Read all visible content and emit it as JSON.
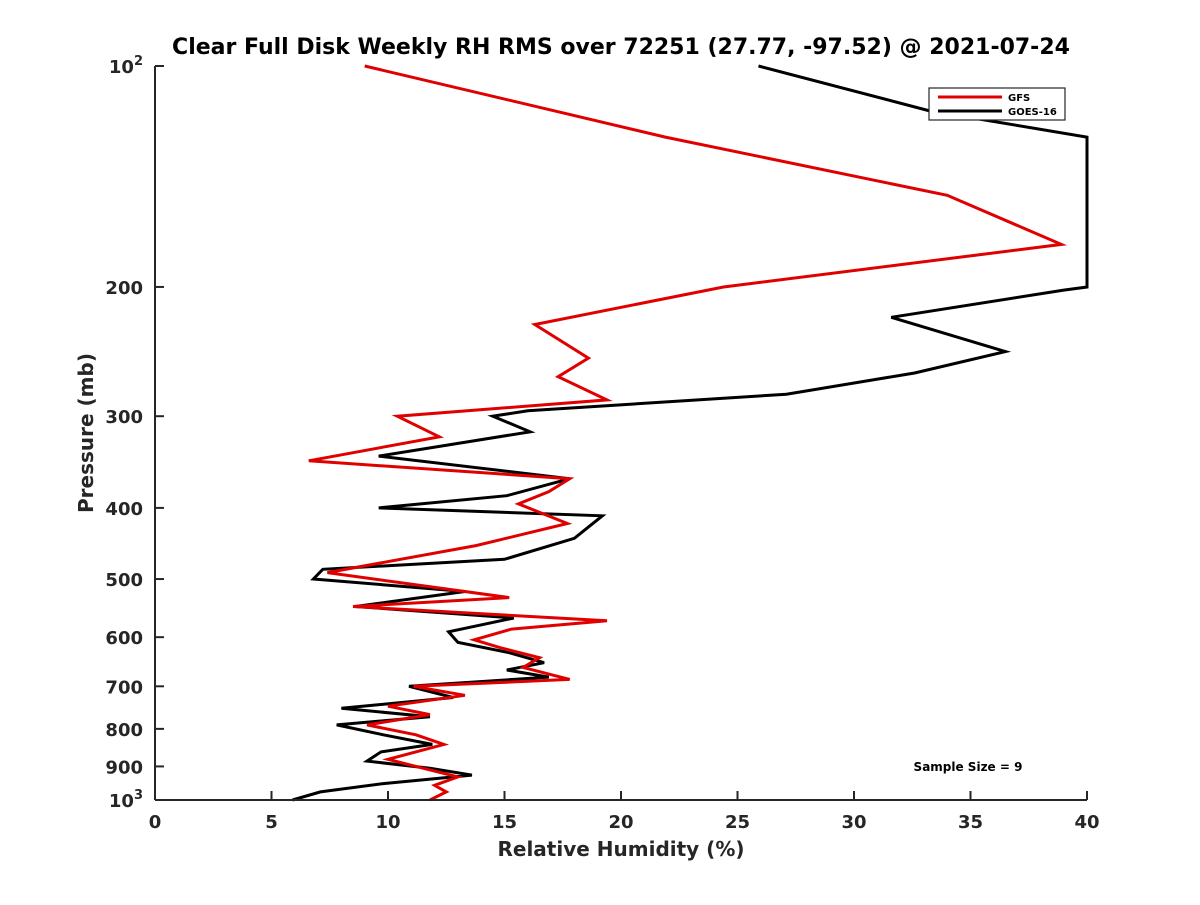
{
  "chart_data": {
    "type": "line",
    "title": "Clear Full Disk Weekly RH RMS over 72251 (27.77, -97.52) @ 2021-07-24",
    "xlabel": "Relative Humidity (%)",
    "ylabel": "Pressure (mb)",
    "xlim": [
      0,
      40
    ],
    "ylim": [
      100,
      1000
    ],
    "y_scale": "log",
    "y_reversed": true,
    "grid": false,
    "legend_position": "top-right",
    "x_ticks": [
      "0",
      "5",
      "10",
      "15",
      "20",
      "25",
      "30",
      "35",
      "40"
    ],
    "y_ticks": [
      {
        "value": 100,
        "base": "10",
        "exp": "2"
      },
      {
        "value": 200,
        "label": "200"
      },
      {
        "value": 300,
        "label": "300"
      },
      {
        "value": 400,
        "label": "400"
      },
      {
        "value": 500,
        "label": "500"
      },
      {
        "value": 600,
        "label": "600"
      },
      {
        "value": 700,
        "label": "700"
      },
      {
        "value": 800,
        "label": "800"
      },
      {
        "value": 900,
        "label": "900"
      },
      {
        "value": 1000,
        "base": "10",
        "exp": "3"
      }
    ],
    "annotation": "Sample Size = 9",
    "series": [
      {
        "name": "GFS",
        "color": "#e00000",
        "points": [
          [
            9.0,
            100
          ],
          [
            21.9,
            125
          ],
          [
            34.0,
            150
          ],
          [
            38.9,
            175
          ],
          [
            24.4,
            200
          ],
          [
            16.3,
            225
          ],
          [
            18.6,
            250
          ],
          [
            17.3,
            265
          ],
          [
            19.4,
            285
          ],
          [
            10.4,
            300
          ],
          [
            12.2,
            320
          ],
          [
            6.6,
            345
          ],
          [
            17.8,
            365
          ],
          [
            16.9,
            380
          ],
          [
            15.6,
            395
          ],
          [
            17.7,
            420
          ],
          [
            13.8,
            450
          ],
          [
            7.4,
            490
          ],
          [
            15.2,
            530
          ],
          [
            8.5,
            545
          ],
          [
            19.4,
            570
          ],
          [
            15.3,
            585
          ],
          [
            13.7,
            605
          ],
          [
            14.8,
            620
          ],
          [
            16.5,
            640
          ],
          [
            15.8,
            660
          ],
          [
            17.8,
            685
          ],
          [
            11.1,
            700
          ],
          [
            13.3,
            720
          ],
          [
            10.0,
            745
          ],
          [
            11.8,
            765
          ],
          [
            9.1,
            790
          ],
          [
            11.2,
            815
          ],
          [
            12.4,
            840
          ],
          [
            10.0,
            880
          ],
          [
            11.5,
            905
          ],
          [
            13.0,
            930
          ],
          [
            12.0,
            955
          ],
          [
            12.5,
            975
          ],
          [
            11.8,
            1000
          ]
        ]
      },
      {
        "name": "GOES-16",
        "color": "#000000",
        "points": [
          [
            25.9,
            100
          ],
          [
            33.2,
            115
          ],
          [
            40.0,
            125
          ],
          [
            40.0,
            200
          ],
          [
            39.0,
            202
          ],
          [
            31.6,
            220
          ],
          [
            36.5,
            245
          ],
          [
            32.6,
            262
          ],
          [
            27.1,
            280
          ],
          [
            16.0,
            295
          ],
          [
            14.5,
            300
          ],
          [
            16.1,
            315
          ],
          [
            9.6,
            340
          ],
          [
            17.8,
            365
          ],
          [
            15.1,
            385
          ],
          [
            9.6,
            400
          ],
          [
            19.2,
            410
          ],
          [
            18.0,
            440
          ],
          [
            15.0,
            470
          ],
          [
            7.2,
            485
          ],
          [
            6.8,
            500
          ],
          [
            13.3,
            520
          ],
          [
            8.6,
            545
          ],
          [
            15.4,
            565
          ],
          [
            12.6,
            590
          ],
          [
            13.0,
            610
          ],
          [
            15.2,
            630
          ],
          [
            16.7,
            650
          ],
          [
            15.1,
            665
          ],
          [
            16.9,
            680
          ],
          [
            10.9,
            700
          ],
          [
            12.8,
            725
          ],
          [
            8.0,
            750
          ],
          [
            11.8,
            770
          ],
          [
            7.8,
            790
          ],
          [
            9.8,
            815
          ],
          [
            11.9,
            840
          ],
          [
            9.7,
            860
          ],
          [
            9.1,
            885
          ],
          [
            11.8,
            905
          ],
          [
            13.6,
            925
          ],
          [
            9.8,
            950
          ],
          [
            7.1,
            975
          ],
          [
            5.9,
            1000
          ]
        ]
      }
    ]
  }
}
